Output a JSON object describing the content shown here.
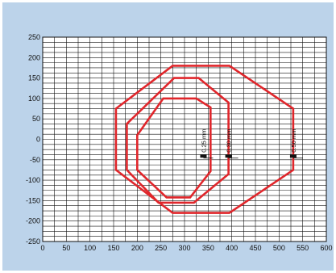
{
  "colors": {
    "background": "#bcd3ea",
    "plot_background": "#ffffff",
    "grid": "#111111",
    "zone_outline": "#e0262b",
    "marker": "#111111"
  },
  "chart_data": {
    "type": "scatter",
    "title": "",
    "xlabel": "",
    "ylabel": "",
    "xlim": [
      0,
      600
    ],
    "ylim": [
      -250,
      250
    ],
    "grid": true,
    "x_ticks": [
      "0",
      "50",
      "100",
      "150",
      "200",
      "250",
      "300",
      "350",
      "400",
      "450",
      "500",
      "550",
      "600"
    ],
    "y_ticks": [
      "250",
      "200",
      "150",
      "100",
      "50",
      "0",
      "-50",
      "-100",
      "-150",
      "-200",
      "-250"
    ],
    "zones": [
      {
        "points": [
          [
            155,
            75
          ],
          [
            275,
            180
          ],
          [
            395,
            180
          ],
          [
            530,
            75
          ],
          [
            530,
            -75
          ],
          [
            395,
            -180
          ],
          [
            275,
            -180
          ],
          [
            155,
            -75
          ]
        ]
      },
      {
        "points": [
          [
            178,
            38
          ],
          [
            278,
            150
          ],
          [
            330,
            150
          ],
          [
            393,
            90
          ],
          [
            393,
            -85
          ],
          [
            320,
            -155
          ],
          [
            245,
            -155
          ],
          [
            178,
            -75
          ]
        ]
      },
      {
        "points": [
          [
            200,
            10
          ],
          [
            255,
            100
          ],
          [
            325,
            100
          ],
          [
            355,
            78
          ],
          [
            355,
            -78
          ],
          [
            312,
            -142
          ],
          [
            262,
            -142
          ],
          [
            200,
            -75
          ]
        ]
      }
    ],
    "resolutions": [
      {
        "label": "0.25 mm",
        "x": 340,
        "y": -40
      },
      {
        "label": "0.30 mm",
        "x": 393,
        "y": -40
      },
      {
        "label": "0.50 mm",
        "x": 530,
        "y": -40
      }
    ]
  }
}
